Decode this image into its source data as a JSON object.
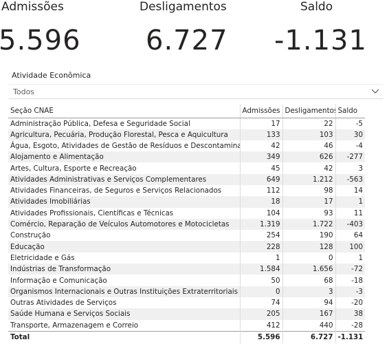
{
  "kpis": {
    "admissoes": {
      "title": "Admissões",
      "value": "5.596"
    },
    "desligamentos": {
      "title": "Desligamentos",
      "value": "6.727"
    },
    "saldo": {
      "title": "Saldo",
      "value": "-1.131"
    }
  },
  "slicer": {
    "title": "Atividade Econômica",
    "value": "Todos",
    "icon": "chevron-down-icon"
  },
  "table": {
    "headers": [
      "Seção CNAE",
      "Admissões",
      "Desligamentos",
      "Saldo"
    ],
    "rows": [
      [
        "Administração Pública, Defesa e Seguridade Social",
        "17",
        "22",
        "-5"
      ],
      [
        "Agricultura, Pecuária, Produção Florestal, Pesca e Aquicultura",
        "133",
        "103",
        "30"
      ],
      [
        "Água, Esgoto, Atividades de Gestão de Resíduos e Descontaminação",
        "42",
        "46",
        "-4"
      ],
      [
        "Alojamento e Alimentação",
        "349",
        "626",
        "-277"
      ],
      [
        "Artes, Cultura, Esporte e Recreação",
        "45",
        "42",
        "3"
      ],
      [
        "Atividades Administrativas e Serviços Complementares",
        "649",
        "1.212",
        "-563"
      ],
      [
        "Atividades Financeiras, de Seguros e Serviços Relacionados",
        "112",
        "98",
        "14"
      ],
      [
        "Atividades Imobiliárias",
        "18",
        "17",
        "1"
      ],
      [
        "Atividades Profissionais, Científicas e Técnicas",
        "104",
        "93",
        "11"
      ],
      [
        "Comércio, Reparação de Veículos Automotores e Motocicletas",
        "1.319",
        "1.722",
        "-403"
      ],
      [
        "Construção",
        "254",
        "190",
        "64"
      ],
      [
        "Educação",
        "228",
        "128",
        "100"
      ],
      [
        "Eletricidade e Gás",
        "1",
        "0",
        "1"
      ],
      [
        "Indústrias de Transformação",
        "1.584",
        "1.656",
        "-72"
      ],
      [
        "Informação e Comunicação",
        "50",
        "68",
        "-18"
      ],
      [
        "Organismos Internacionais e Outras Instituições Extraterritoriais",
        "0",
        "3",
        "-3"
      ],
      [
        "Outras Atividades de Serviços",
        "74",
        "94",
        "-20"
      ],
      [
        "Saúde Humana e Serviços Sociais",
        "205",
        "167",
        "38"
      ],
      [
        "Transporte, Armazenagem e Correio",
        "412",
        "440",
        "-28"
      ]
    ],
    "total": [
      "Total",
      "5.596",
      "6.727",
      "-1.131"
    ]
  }
}
